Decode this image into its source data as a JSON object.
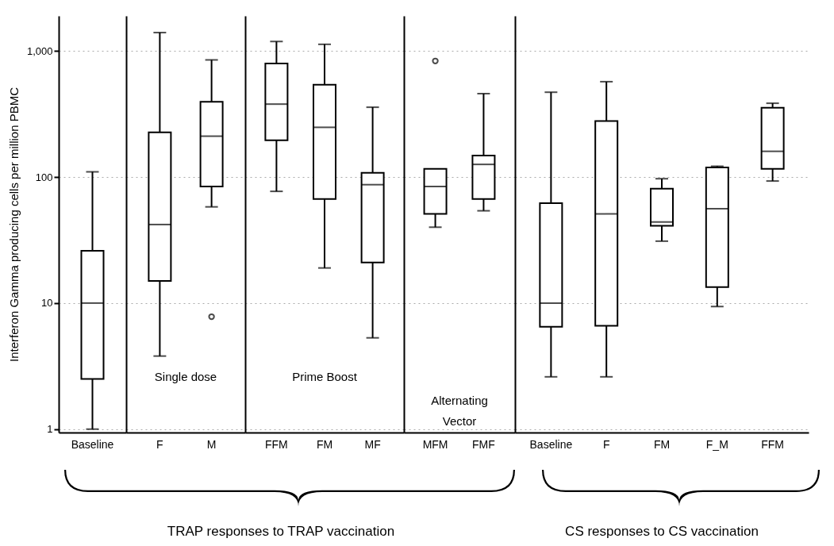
{
  "chart_data": [
    {
      "type": "box",
      "categories": [
        "Baseline"
      ],
      "boxes": [
        {
          "low": 1,
          "q1": 2.5,
          "median": 10,
          "q3": 26,
          "high": 110
        }
      ],
      "ylabel": "Interferon Gamma producing cells per million PBMC",
      "log": true,
      "ylim": [
        0.94,
        1900
      ],
      "yticks": [
        1,
        10,
        100,
        {
          "value": 1000,
          "label": "1,000"
        }
      ],
      "grid": "y"
    },
    {
      "type": "box",
      "categories": [
        "F",
        "M"
      ],
      "boxes": [
        {
          "low": 3.8,
          "q1": 15,
          "median": 42,
          "q3": 226,
          "high": 1400
        },
        {
          "low": 58,
          "q1": 84,
          "median": 211,
          "q3": 395,
          "high": 850,
          "outliers": [
            7.8
          ]
        }
      ],
      "annotations": [
        "Single dose"
      ],
      "log": true,
      "ylim": [
        0.94,
        1900
      ],
      "yticks": [
        {
          "value": 1,
          "label": null
        },
        {
          "value": 10,
          "label": null
        },
        {
          "value": 100,
          "label": null
        },
        {
          "value": 1000,
          "label": null
        }
      ],
      "grid": "y",
      "tick_labels": "x"
    },
    {
      "type": "box",
      "categories": [
        "FFM",
        "FM",
        "MF"
      ],
      "boxes": [
        {
          "low": 77,
          "q1": 196,
          "median": 379,
          "q3": 796,
          "high": 1190
        },
        {
          "low": 19,
          "q1": 67,
          "median": 248,
          "q3": 540,
          "high": 1130
        },
        {
          "low": 5.3,
          "q1": 21,
          "median": 87,
          "q3": 108,
          "high": 358
        }
      ],
      "annotations": [
        "Prime Boost",
        "TRAP responses to TRAP vaccination"
      ],
      "log": true,
      "ylim": [
        0.94,
        1900
      ],
      "yticks": [
        {
          "value": 1,
          "label": null
        },
        {
          "value": 10,
          "label": null
        },
        {
          "value": 100,
          "label": null
        },
        {
          "value": 1000,
          "label": null
        }
      ],
      "grid": "y",
      "tick_labels": "x"
    },
    {
      "type": "box",
      "categories": [
        "MFM",
        "FMF"
      ],
      "boxes": [
        {
          "low": 40,
          "q1": 51,
          "median": 84,
          "q3": 116,
          "high": 116,
          "outliers": [
            834
          ]
        },
        {
          "low": 54,
          "q1": 67,
          "median": 126,
          "q3": 148,
          "high": 459
        }
      ],
      "annotations": [
        "Alternating\nVector"
      ],
      "log": true,
      "ylim": [
        0.94,
        1900
      ],
      "yticks": [
        {
          "value": 1,
          "label": null
        },
        {
          "value": 10,
          "label": null
        },
        {
          "value": 100,
          "label": null
        },
        {
          "value": 1000,
          "label": null
        }
      ],
      "grid": "y",
      "tick_labels": "x"
    },
    {
      "type": "box",
      "categories": [
        "Baseline",
        "F",
        "FM",
        "F_M",
        "FFM"
      ],
      "boxes": [
        {
          "low": 2.6,
          "q1": 6.5,
          "median": 10,
          "q3": 62,
          "high": 471
        },
        {
          "low": 2.6,
          "q1": 6.6,
          "median": 51,
          "q3": 278,
          "high": 571
        },
        {
          "low": 31,
          "q1": 41,
          "median": 44,
          "q3": 81,
          "high": 97
        },
        {
          "low": 9.4,
          "q1": 13.4,
          "median": 56,
          "q3": 119,
          "high": 122
        },
        {
          "low": 93,
          "q1": 116,
          "median": 160,
          "q3": 355,
          "high": 385
        }
      ],
      "annotations": [
        "CS responses to CS vaccination"
      ],
      "log": true,
      "ylim": [
        0.94,
        1900
      ],
      "yticks": [
        {
          "value": 1,
          "label": null
        },
        {
          "value": 10,
          "label": null
        },
        {
          "value": 100,
          "label": null
        },
        {
          "value": 1000,
          "label": null
        }
      ],
      "grid": "y",
      "tick_labels": "x"
    }
  ]
}
